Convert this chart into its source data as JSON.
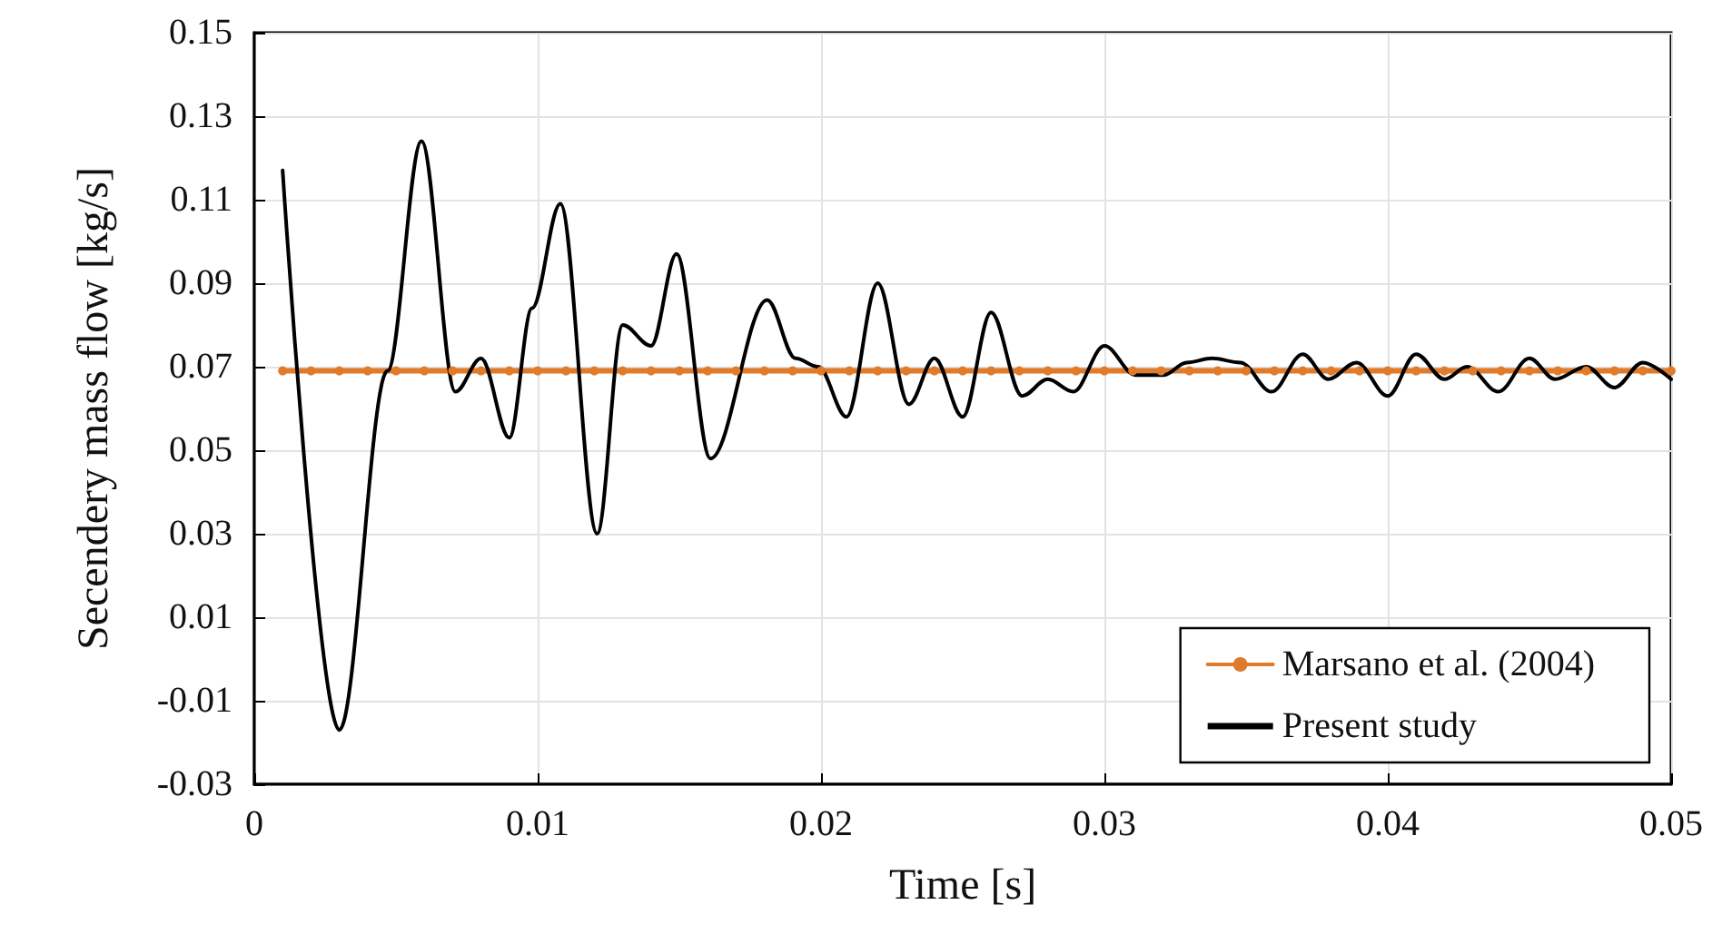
{
  "chart_data": {
    "type": "line",
    "xlabel": "Time [s]",
    "ylabel": "Secendery mass flow [kg/s]",
    "xlim": [
      0,
      0.05
    ],
    "xticks": [
      0,
      0.01,
      0.02,
      0.03,
      0.04,
      0.05
    ],
    "ylim": [
      -0.03,
      0.15
    ],
    "yticks": [
      -0.03,
      -0.01,
      0.01,
      0.03,
      0.05,
      0.07,
      0.09,
      0.11,
      0.13,
      0.15
    ],
    "grid": true,
    "legend": "bottom right",
    "line_style": "solid",
    "series": [
      {
        "name": "Marsano et al. (2004)",
        "color": "#e07b2c",
        "marker": "circle",
        "x": [
          0.001,
          0.002,
          0.003,
          0.004,
          0.005,
          0.006,
          0.007,
          0.008,
          0.009,
          0.01,
          0.011,
          0.012,
          0.013,
          0.014,
          0.015,
          0.016,
          0.017,
          0.018,
          0.019,
          0.02,
          0.021,
          0.022,
          0.023,
          0.024,
          0.025,
          0.026,
          0.027,
          0.028,
          0.029,
          0.03,
          0.031,
          0.032,
          0.033,
          0.034,
          0.035,
          0.036,
          0.037,
          0.038,
          0.039,
          0.04,
          0.041,
          0.042,
          0.043,
          0.044,
          0.045,
          0.046,
          0.047,
          0.048,
          0.049,
          0.05
        ],
        "values": [
          0.069,
          0.069,
          0.069,
          0.069,
          0.069,
          0.069,
          0.069,
          0.069,
          0.069,
          0.069,
          0.069,
          0.069,
          0.069,
          0.069,
          0.069,
          0.069,
          0.069,
          0.069,
          0.069,
          0.069,
          0.069,
          0.069,
          0.069,
          0.069,
          0.069,
          0.069,
          0.069,
          0.069,
          0.069,
          0.069,
          0.069,
          0.069,
          0.069,
          0.069,
          0.069,
          0.069,
          0.069,
          0.069,
          0.069,
          0.069,
          0.069,
          0.069,
          0.069,
          0.069,
          0.069,
          0.069,
          0.069,
          0.069,
          0.069,
          0.069
        ]
      },
      {
        "name": "Present study",
        "color": "#000000",
        "marker": "none",
        "x": [
          0.001,
          0.003,
          0.0047,
          0.0059,
          0.0071,
          0.008,
          0.009,
          0.0098,
          0.0108,
          0.0121,
          0.013,
          0.014,
          0.0149,
          0.0161,
          0.0181,
          0.0191,
          0.0199,
          0.0209,
          0.022,
          0.0231,
          0.024,
          0.025,
          0.026,
          0.0271,
          0.028,
          0.0289,
          0.03,
          0.0311,
          0.0321,
          0.0329,
          0.0338,
          0.0348,
          0.0359,
          0.037,
          0.0379,
          0.0389,
          0.04,
          0.041,
          0.042,
          0.0428,
          0.0439,
          0.045,
          0.0459,
          0.047,
          0.048,
          0.049,
          0.05
        ],
        "values": [
          0.117,
          -0.017,
          0.069,
          0.124,
          0.064,
          0.072,
          0.053,
          0.084,
          0.109,
          0.03,
          0.08,
          0.075,
          0.097,
          0.048,
          0.086,
          0.072,
          0.07,
          0.058,
          0.09,
          0.061,
          0.072,
          0.058,
          0.083,
          0.063,
          0.067,
          0.064,
          0.075,
          0.068,
          0.068,
          0.071,
          0.072,
          0.071,
          0.064,
          0.073,
          0.067,
          0.071,
          0.063,
          0.073,
          0.067,
          0.07,
          0.064,
          0.072,
          0.067,
          0.07,
          0.065,
          0.071,
          0.067
        ]
      }
    ]
  }
}
